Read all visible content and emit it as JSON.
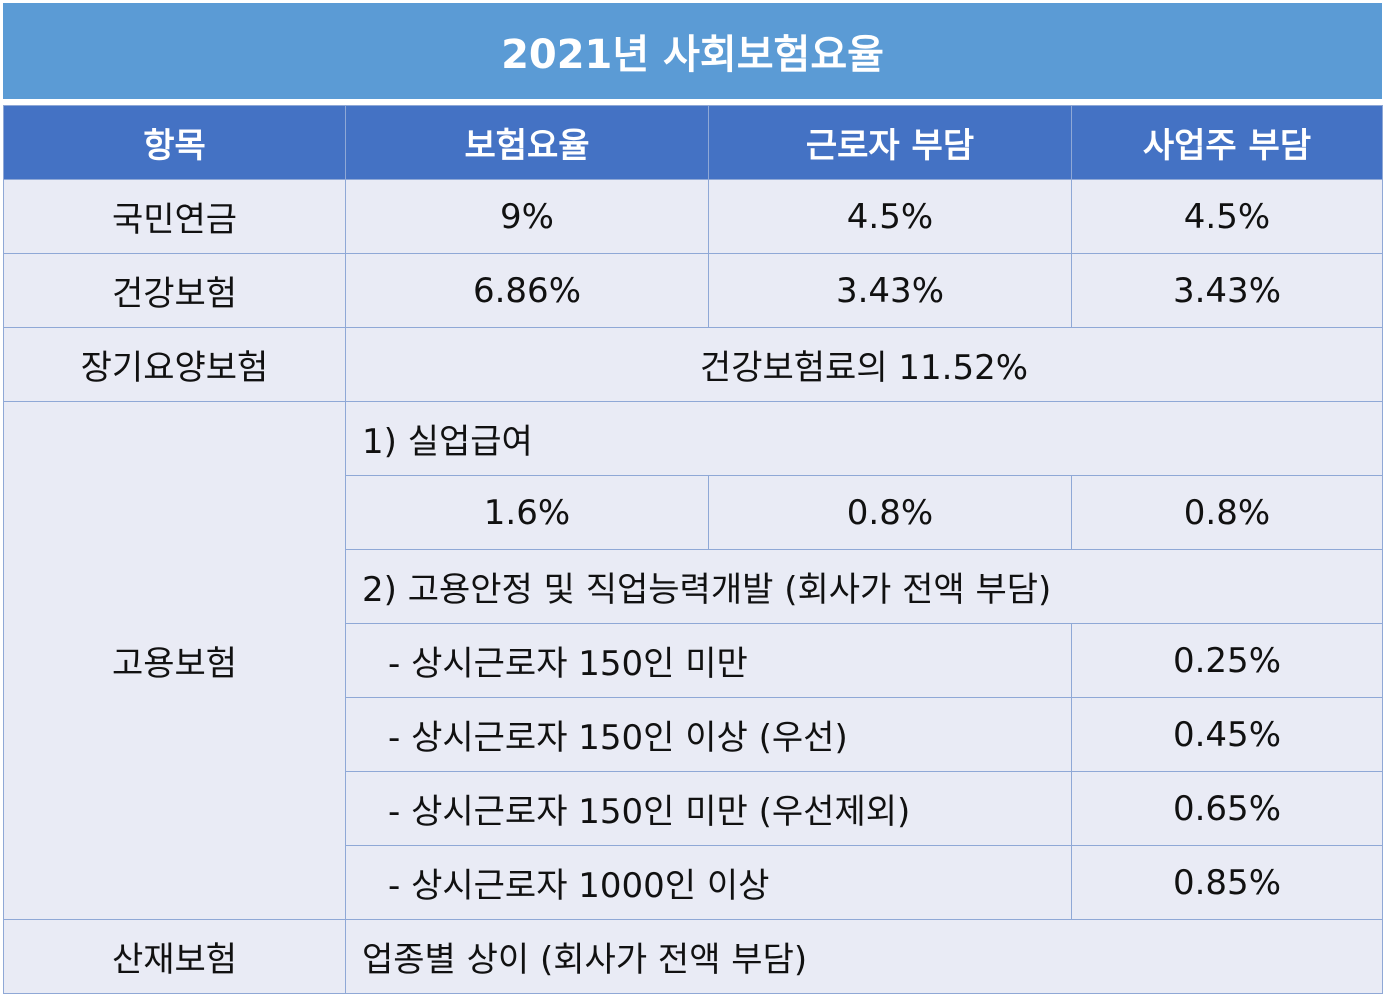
{
  "title": "2021년 사회보험요율",
  "headers": [
    "항목",
    "보험요율",
    "근로자 부담",
    "사업주 부담"
  ],
  "national_pension": {
    "label": "국민연금",
    "rate": "9%",
    "worker": "4.5%",
    "employer": "4.5%"
  },
  "health_insurance": {
    "label": "건강보험",
    "rate": "6.86%",
    "worker": "3.43%",
    "employer": "3.43%"
  },
  "long_term_care": {
    "label": "장기요양보험",
    "note": "건강보험료의 11.52%"
  },
  "employment_insurance": {
    "label": "고용보험",
    "unemployment_title": "1) 실업급여",
    "unemployment": {
      "rate": "1.6%",
      "worker": "0.8%",
      "employer": "0.8%"
    },
    "stability_title": "2) 고용안정 및 직업능력개발 (회사가 전액 부담)",
    "rows": [
      {
        "label": "- 상시근로자 150인 미만",
        "rate": "0.25%"
      },
      {
        "label": "- 상시근로자 150인 이상 (우선)",
        "rate": "0.45%"
      },
      {
        "label": "- 상시근로자 150인 미만 (우선제외)",
        "rate": "0.65%"
      },
      {
        "label": "- 상시근로자 1000인 이상",
        "rate": "0.85%"
      }
    ]
  },
  "industrial_accident": {
    "label": "산재보험",
    "note": "업종별 상이 (회사가 전액 부담)"
  }
}
